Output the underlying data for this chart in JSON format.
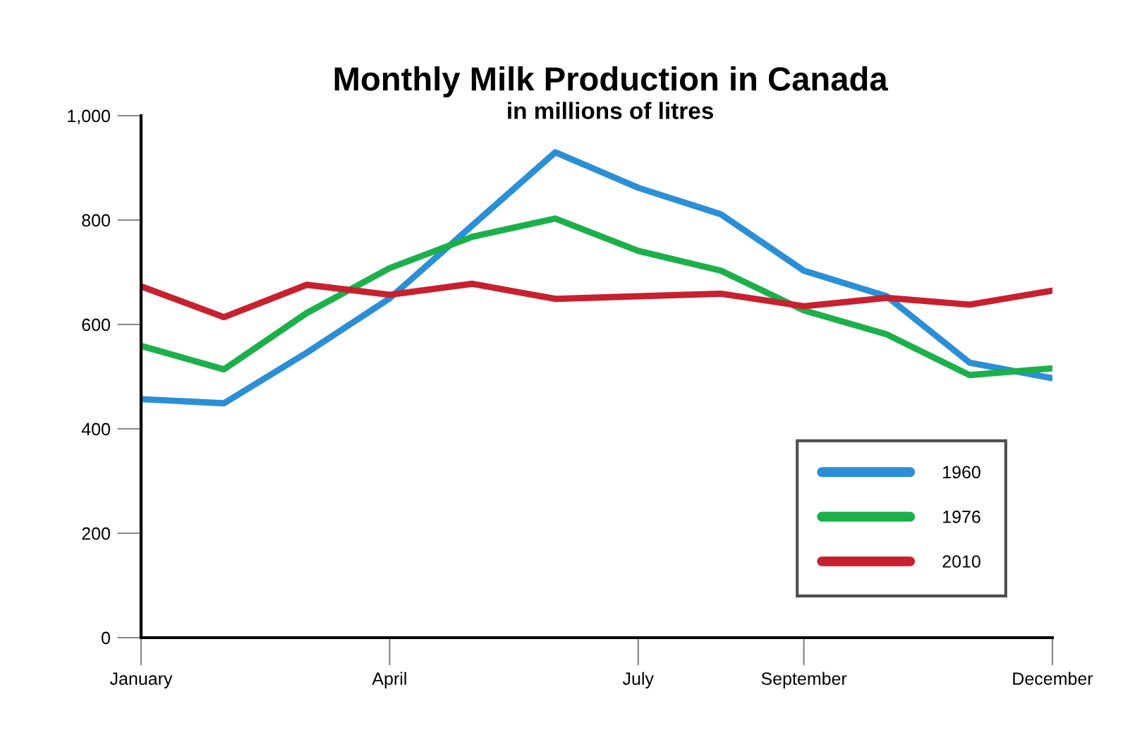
{
  "chart_data": {
    "type": "line",
    "title": "Monthly Milk Production in Canada",
    "subtitle": "in millions of litres",
    "categories": [
      "January",
      null,
      null,
      "April",
      null,
      null,
      "July",
      null,
      "September",
      null,
      null,
      "December"
    ],
    "series": [
      {
        "name": "1960",
        "color": "#2a8fd6",
        "values": [
          457,
          449,
          546,
          650,
          790,
          930,
          862,
          811,
          703,
          654,
          527,
          497
        ]
      },
      {
        "name": "1976",
        "color": "#1cb04a",
        "values": [
          559,
          514,
          622,
          708,
          768,
          803,
          741,
          703,
          627,
          581,
          503,
          516
        ]
      },
      {
        "name": "2010",
        "color": "#c8202f",
        "values": [
          673,
          614,
          676,
          657,
          678,
          649,
          654,
          659,
          635,
          651,
          638,
          665
        ]
      }
    ],
    "ylim": [
      0,
      1000
    ],
    "yticks": [
      0,
      200,
      400,
      600,
      800,
      {
        "value": 1000,
        "label": "1,000"
      }
    ],
    "grid": false,
    "legend": "bottom right",
    "marker": "none",
    "line_style": "solid"
  }
}
